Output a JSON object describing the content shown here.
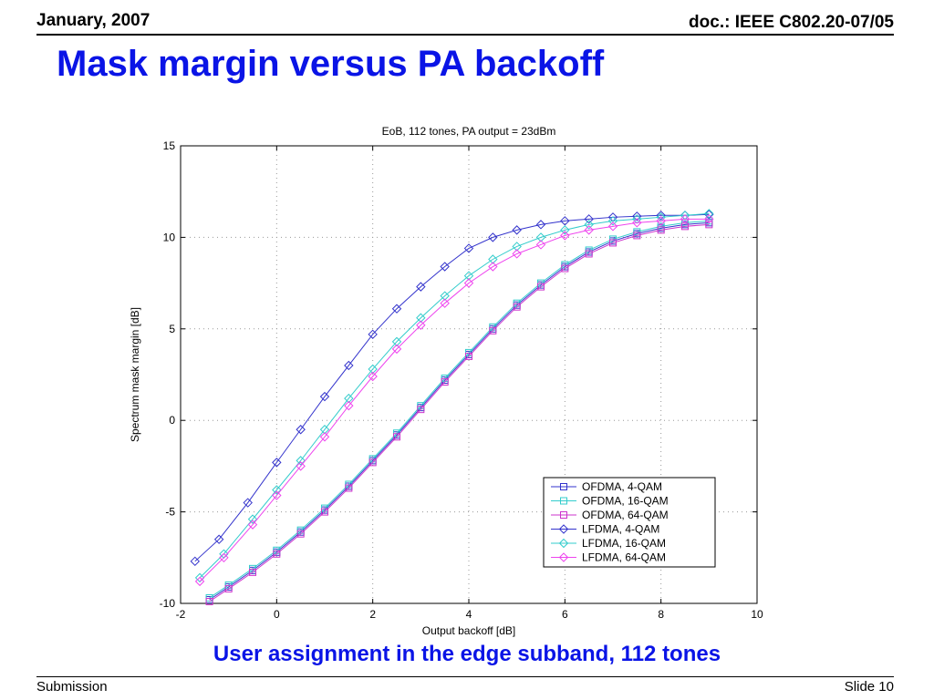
{
  "header": {
    "date": "January, 2007",
    "doc": "doc.: IEEE C802.20-07/05"
  },
  "slide_title": "Mask margin versus PA backoff",
  "caption": "User assignment in the edge subband, 112 tones",
  "footer": {
    "left": "Submission",
    "right": "Slide 10"
  },
  "chart_data": {
    "type": "line",
    "title": "EoB, 112 tones, PA output = 23dBm",
    "xlabel": "Output backoff [dB]",
    "ylabel": "Spectrum mask margin [dB]",
    "xlim": [
      -2,
      10
    ],
    "ylim": [
      -10,
      15
    ],
    "xticks": [
      -2,
      0,
      2,
      4,
      6,
      8,
      10
    ],
    "yticks": [
      -10,
      -5,
      0,
      5,
      10,
      15
    ],
    "grid": true,
    "legend_position": "lower-right",
    "series": [
      {
        "name": "OFDMA,  4-QAM",
        "color": "#3333cc",
        "marker": "square",
        "x": [
          -1.4,
          -1.0,
          -0.5,
          0,
          0.5,
          1,
          1.5,
          2,
          2.5,
          3,
          3.5,
          4,
          4.5,
          5,
          5.5,
          6,
          6.5,
          7,
          7.5,
          8,
          8.5,
          9
        ],
        "y": [
          -9.8,
          -9.1,
          -8.2,
          -7.2,
          -6.1,
          -4.9,
          -3.6,
          -2.2,
          -0.8,
          0.7,
          2.2,
          3.6,
          5.0,
          6.3,
          7.4,
          8.4,
          9.2,
          9.8,
          10.2,
          10.5,
          10.7,
          10.8
        ]
      },
      {
        "name": "OFDMA, 16-QAM",
        "color": "#33cccc",
        "marker": "square",
        "x": [
          -1.4,
          -1.0,
          -0.5,
          0,
          0.5,
          1,
          1.5,
          2,
          2.5,
          3,
          3.5,
          4,
          4.5,
          5,
          5.5,
          6,
          6.5,
          7,
          7.5,
          8,
          8.5,
          9
        ],
        "y": [
          -9.7,
          -9.0,
          -8.1,
          -7.1,
          -6.0,
          -4.8,
          -3.5,
          -2.1,
          -0.7,
          0.8,
          2.3,
          3.7,
          5.1,
          6.4,
          7.5,
          8.5,
          9.3,
          9.9,
          10.3,
          10.6,
          10.8,
          10.9
        ]
      },
      {
        "name": "OFDMA, 64-QAM",
        "color": "#cc33cc",
        "marker": "square",
        "x": [
          -1.4,
          -1.0,
          -0.5,
          0,
          0.5,
          1,
          1.5,
          2,
          2.5,
          3,
          3.5,
          4,
          4.5,
          5,
          5.5,
          6,
          6.5,
          7,
          7.5,
          8,
          8.5,
          9
        ],
        "y": [
          -9.9,
          -9.2,
          -8.3,
          -7.3,
          -6.2,
          -5.0,
          -3.7,
          -2.3,
          -0.9,
          0.6,
          2.1,
          3.5,
          4.9,
          6.2,
          7.3,
          8.3,
          9.1,
          9.7,
          10.1,
          10.4,
          10.6,
          10.7
        ]
      },
      {
        "name": "LFDMA,  4-QAM",
        "color": "#3333cc",
        "marker": "diamond",
        "x": [
          -1.7,
          -1.2,
          -0.6,
          0,
          0.5,
          1,
          1.5,
          2,
          2.5,
          3,
          3.5,
          4,
          4.5,
          5,
          5.5,
          6,
          6.5,
          7,
          7.5,
          8,
          8.5,
          9
        ],
        "y": [
          -7.7,
          -6.5,
          -4.5,
          -2.3,
          -0.5,
          1.3,
          3.0,
          4.7,
          6.1,
          7.3,
          8.4,
          9.4,
          10.0,
          10.4,
          10.7,
          10.9,
          11.0,
          11.1,
          11.15,
          11.2,
          11.2,
          11.25
        ]
      },
      {
        "name": "LFDMA, 16-QAM",
        "color": "#33cccc",
        "marker": "diamond",
        "x": [
          -1.6,
          -1.1,
          -0.5,
          0,
          0.5,
          1,
          1.5,
          2,
          2.5,
          3,
          3.5,
          4,
          4.5,
          5,
          5.5,
          6,
          6.5,
          7,
          7.5,
          8,
          8.5,
          9
        ],
        "y": [
          -8.6,
          -7.3,
          -5.4,
          -3.8,
          -2.2,
          -0.5,
          1.2,
          2.8,
          4.3,
          5.6,
          6.8,
          7.9,
          8.8,
          9.5,
          10.0,
          10.4,
          10.7,
          10.9,
          11.0,
          11.1,
          11.2,
          11.3
        ]
      },
      {
        "name": "LFDMA, 64-QAM",
        "color": "#ee44ee",
        "marker": "diamond",
        "x": [
          -1.6,
          -1.1,
          -0.5,
          0,
          0.5,
          1,
          1.5,
          2,
          2.5,
          3,
          3.5,
          4,
          4.5,
          5,
          5.5,
          6,
          6.5,
          7,
          7.5,
          8,
          8.5,
          9
        ],
        "y": [
          -8.8,
          -7.5,
          -5.7,
          -4.1,
          -2.5,
          -0.9,
          0.8,
          2.4,
          3.9,
          5.2,
          6.4,
          7.5,
          8.4,
          9.1,
          9.6,
          10.1,
          10.4,
          10.6,
          10.8,
          10.9,
          11.0,
          11.0
        ]
      }
    ]
  }
}
